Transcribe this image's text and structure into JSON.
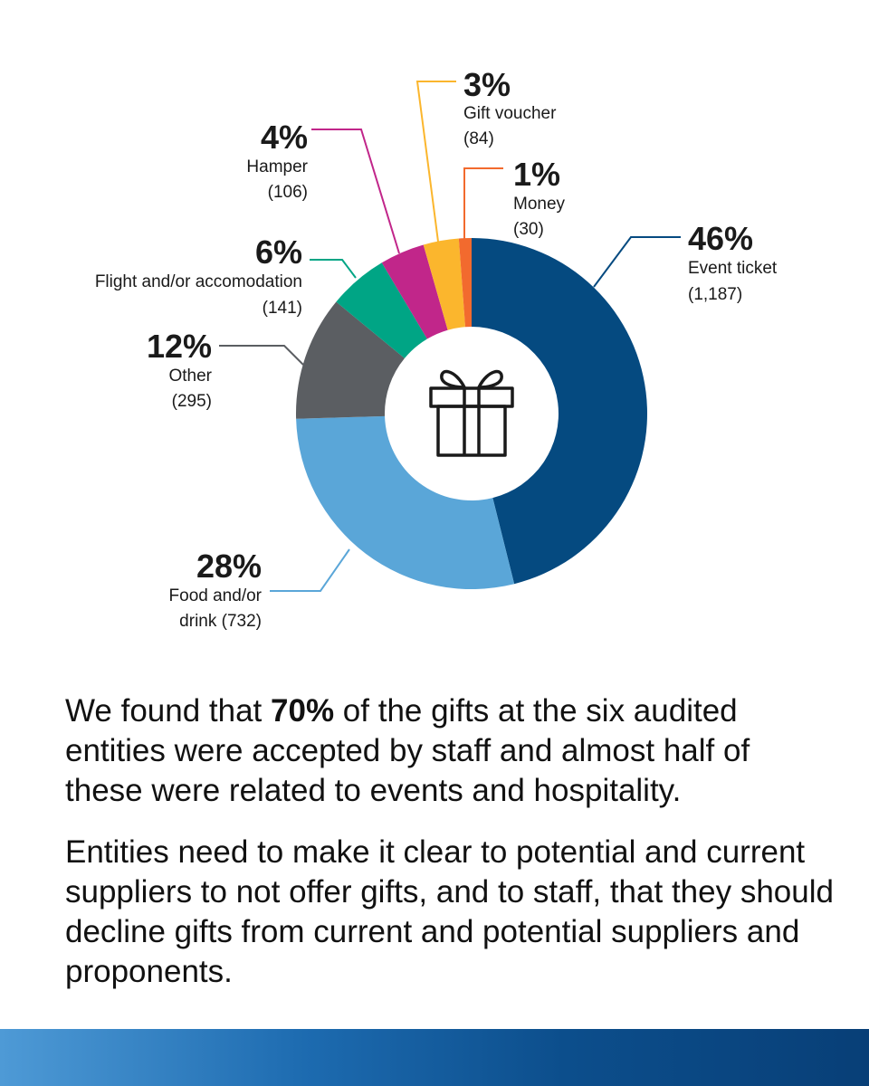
{
  "chart_data": {
    "type": "pie",
    "slices": [
      {
        "label": "Event ticket",
        "percent": 46,
        "count": "(1,187)",
        "color": "#054a80"
      },
      {
        "label": "Food and/or drink",
        "percent": 28,
        "count": "(732)",
        "color": "#5aa6d8"
      },
      {
        "label": "Other",
        "percent": 12,
        "count": "(295)",
        "color": "#5b5e62"
      },
      {
        "label": "Flight and/or accomodation",
        "percent": 6,
        "count": "(141)",
        "color": "#00a585"
      },
      {
        "label": "Hamper",
        "percent": 4,
        "count": "(106)",
        "color": "#c1268a"
      },
      {
        "label": "Gift voucher",
        "percent": 3,
        "count": "(84)",
        "color": "#fbb62d"
      },
      {
        "label": "Money",
        "percent": 1,
        "count": "(30)",
        "color": "#f26a2e"
      }
    ],
    "counts_numeric": [
      1187,
      732,
      295,
      141,
      106,
      84,
      30
    ],
    "center_icon": "gift-icon"
  },
  "labels": {
    "event_ticket": {
      "pct": "46%",
      "name": "Event ticket",
      "count": "(1,187)"
    },
    "food": {
      "pct": "28%",
      "name_line1": "Food and/or",
      "name_line2": "drink (732)"
    },
    "other": {
      "pct": "12%",
      "name": "Other",
      "count": "(295)"
    },
    "flight": {
      "pct": "6%",
      "name": "Flight and/or accomodation",
      "count": "(141)"
    },
    "hamper": {
      "pct": "4%",
      "name": "Hamper",
      "count": "(106)"
    },
    "voucher": {
      "pct": "3%",
      "name": "Gift voucher",
      "count": "(84)"
    },
    "money": {
      "pct": "1%",
      "name": "Money",
      "count": "(30)"
    }
  },
  "text": {
    "para1_before": "We found that ",
    "para1_bold": "70%",
    "para1_after": " of the gifts at the six audited entities were accepted by staff and almost half of these were related to events and hospitality.",
    "para2": "Entities need to make it clear to potential and current suppliers to not offer gifts, and to staff, that they should decline gifts from current and potential suppliers and proponents."
  }
}
